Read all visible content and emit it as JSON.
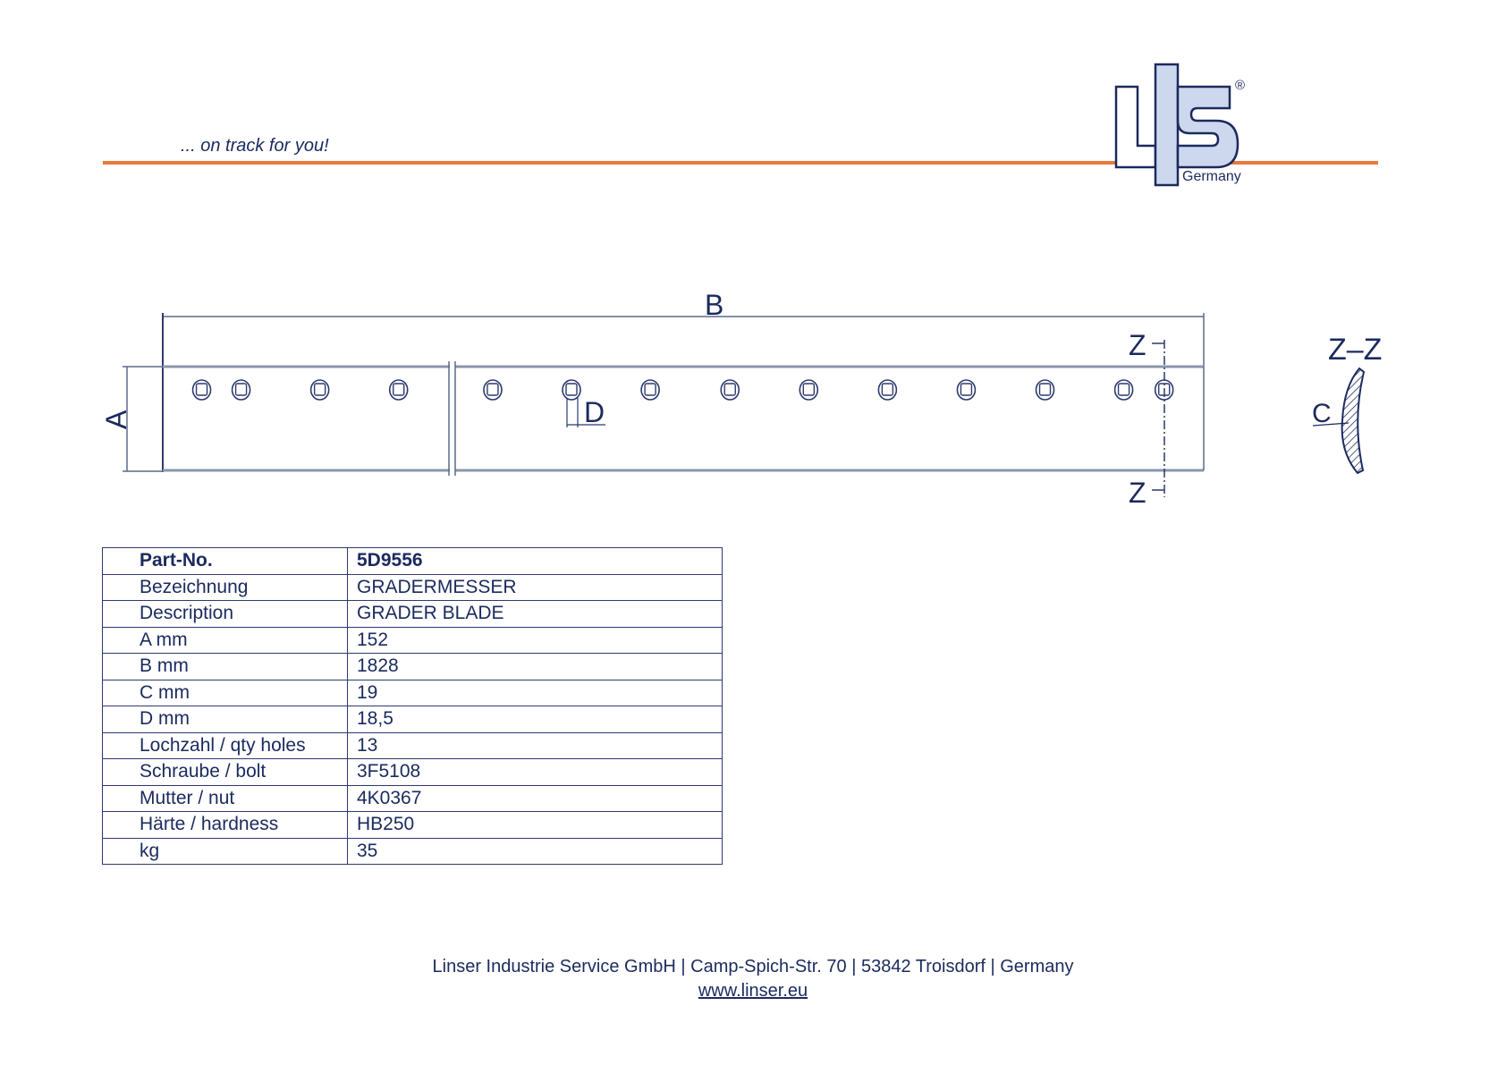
{
  "header": {
    "tagline": "... on track for you!",
    "logo_text": "LIS",
    "logo_subtext": "Germany",
    "logo_registered": "®",
    "accent_color": "#e8793a",
    "brand_color": "#1b2a5e",
    "logo_fill_color": "#cdd8ee"
  },
  "drawing": {
    "label_a": "A",
    "label_b": "B",
    "label_c": "C",
    "label_d": "D",
    "label_z_top": "Z",
    "label_z_bottom": "Z",
    "section_label": "Z–Z"
  },
  "specs": {
    "rows": [
      {
        "key": "Part-No.",
        "value": "5D9556"
      },
      {
        "key": "Bezeichnung",
        "value": "GRADERMESSER"
      },
      {
        "key": "Description",
        "value": "GRADER BLADE"
      },
      {
        "key": "A mm",
        "value": "152"
      },
      {
        "key": "B mm",
        "value": "1828"
      },
      {
        "key": "C mm",
        "value": "19"
      },
      {
        "key": "D mm",
        "value": "18,5"
      },
      {
        "key": "Lochzahl / qty holes",
        "value": "13"
      },
      {
        "key": "Schraube / bolt",
        "value": "3F5108"
      },
      {
        "key": "Mutter / nut",
        "value": "4K0367"
      },
      {
        "key": "Härte / hardness",
        "value": "HB250"
      },
      {
        "key": "kg",
        "value": "35"
      }
    ]
  },
  "footer": {
    "address": "Linser Industrie Service GmbH | Camp-Spich-Str. 70 | 53842 Troisdorf | Germany",
    "website": "www.linser.eu"
  }
}
